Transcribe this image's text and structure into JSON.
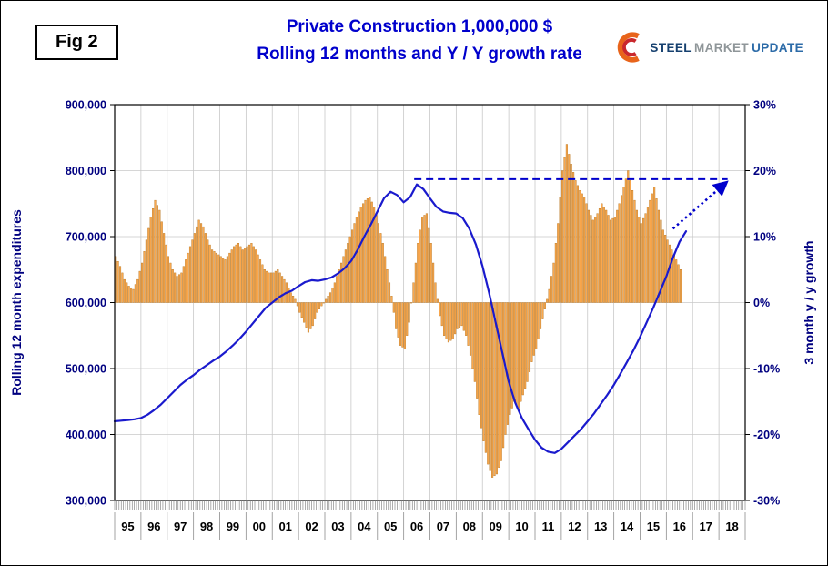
{
  "figure_label": "Fig 2",
  "title": {
    "line1": "Private Construction 1,000,000 $",
    "line2": "Rolling 12 months and Y / Y growth rate"
  },
  "logo": {
    "word1": "STEEL",
    "word2": "MARKET",
    "word3": "UPDATE"
  },
  "chart_data": {
    "type": "combo",
    "title": "Private Construction 1,000,000 $ — Rolling 12 months and Y / Y growth rate",
    "grid": true,
    "left_axis": {
      "title": "Rolling 12 month expenditures",
      "min": 300000,
      "max": 900000,
      "step": 100000,
      "tick_labels": [
        "900,000",
        "800,000",
        "700,000",
        "600,000",
        "500,000",
        "400,000",
        "300,000"
      ]
    },
    "right_axis": {
      "title": "3 month y / y growth",
      "min": -30,
      "max": 30,
      "step": 10,
      "tick_labels": [
        "30%",
        "20%",
        "10%",
        "0%",
        "-10%",
        "-20%",
        "-30%"
      ]
    },
    "x_axis": {
      "start_year": 1995,
      "end_year": 2019,
      "year_labels": [
        "95",
        "96",
        "97",
        "98",
        "99",
        "00",
        "01",
        "02",
        "03",
        "04",
        "05",
        "06",
        "07",
        "08",
        "09",
        "10",
        "11",
        "12",
        "13",
        "14",
        "15",
        "16",
        "17",
        "18"
      ]
    },
    "bars": {
      "name": "Y / Y growth rate",
      "axis": "right",
      "t0": 1995.0,
      "dt_months": 2,
      "values_pct": [
        7.0,
        5.5,
        3.5,
        2.5,
        2.0,
        3.5,
        6.0,
        9.5,
        13.0,
        15.5,
        14.0,
        10.5,
        7.0,
        5.0,
        4.0,
        4.5,
        6.5,
        8.5,
        10.5,
        12.5,
        11.5,
        9.5,
        8.0,
        7.5,
        7.0,
        6.5,
        7.5,
        8.5,
        9.0,
        8.0,
        8.5,
        9.0,
        8.0,
        6.5,
        5.0,
        4.5,
        4.5,
        5.0,
        4.0,
        3.0,
        1.5,
        0.5,
        -1.5,
        -3.0,
        -4.5,
        -3.5,
        -1.5,
        -0.5,
        0.5,
        1.5,
        3.0,
        5.0,
        7.0,
        9.0,
        11.0,
        13.0,
        14.5,
        15.5,
        16.0,
        14.5,
        12.0,
        9.0,
        5.0,
        1.0,
        -4.0,
        -6.5,
        -7.0,
        -3.0,
        3.0,
        9.0,
        13.0,
        13.5,
        9.0,
        3.0,
        -2.0,
        -5.0,
        -6.0,
        -5.5,
        -4.0,
        -3.5,
        -5.0,
        -8.0,
        -12.0,
        -17.0,
        -21.0,
        -24.5,
        -26.5,
        -26.0,
        -24.0,
        -20.0,
        -17.0,
        -15.0,
        -16.0,
        -14.0,
        -12.0,
        -9.0,
        -7.0,
        -4.0,
        -1.0,
        2.0,
        6.0,
        12.0,
        20.0,
        24.0,
        21.0,
        18.5,
        17.0,
        16.0,
        14.0,
        12.5,
        13.5,
        15.0,
        14.0,
        12.5,
        13.0,
        15.0,
        17.5,
        20.0,
        17.0,
        14.0,
        12.0,
        13.5,
        15.5,
        17.5,
        14.0,
        11.0,
        9.5,
        8.0,
        6.5,
        5.0
      ]
    },
    "line": {
      "name": "Rolling 12 month expenditures",
      "axis": "left",
      "t0": 1995.0,
      "dt_years": 0.25,
      "unit_scale": 1000,
      "values_thousands": [
        420,
        421,
        422,
        423,
        425,
        430,
        437,
        445,
        455,
        465,
        475,
        483,
        490,
        498,
        505,
        512,
        518,
        526,
        535,
        545,
        556,
        568,
        580,
        592,
        600,
        608,
        614,
        618,
        625,
        631,
        634,
        633,
        635,
        638,
        644,
        652,
        663,
        680,
        700,
        718,
        738,
        758,
        768,
        763,
        752,
        760,
        779,
        772,
        758,
        745,
        738,
        736,
        735,
        728,
        712,
        688,
        655,
        615,
        570,
        525,
        480,
        448,
        425,
        408,
        392,
        380,
        374,
        372,
        378,
        388,
        398,
        408,
        420,
        432,
        446,
        460,
        475,
        492,
        510,
        528,
        548,
        570,
        592,
        616,
        640,
        668,
        692,
        708
      ]
    },
    "annotations": {
      "dashed_level_line": {
        "level": 787000,
        "from_year": 2006.4,
        "to_year": 2018.33,
        "style": "dashed"
      },
      "dotted_trend_arrow": {
        "from_year": 2016.25,
        "from_level": 712000,
        "to_year": 2018.28,
        "to_level": 782000,
        "style": "dotted-arrow"
      }
    },
    "colors": {
      "bars": "#FAA84E",
      "bar_border": "#B4731E",
      "line": "#1A1ACD",
      "annotation": "#0000CC",
      "grid": "#C8C8C8",
      "axis_text": "#000080",
      "year_text": "#000000",
      "title": "#0000CC"
    }
  }
}
